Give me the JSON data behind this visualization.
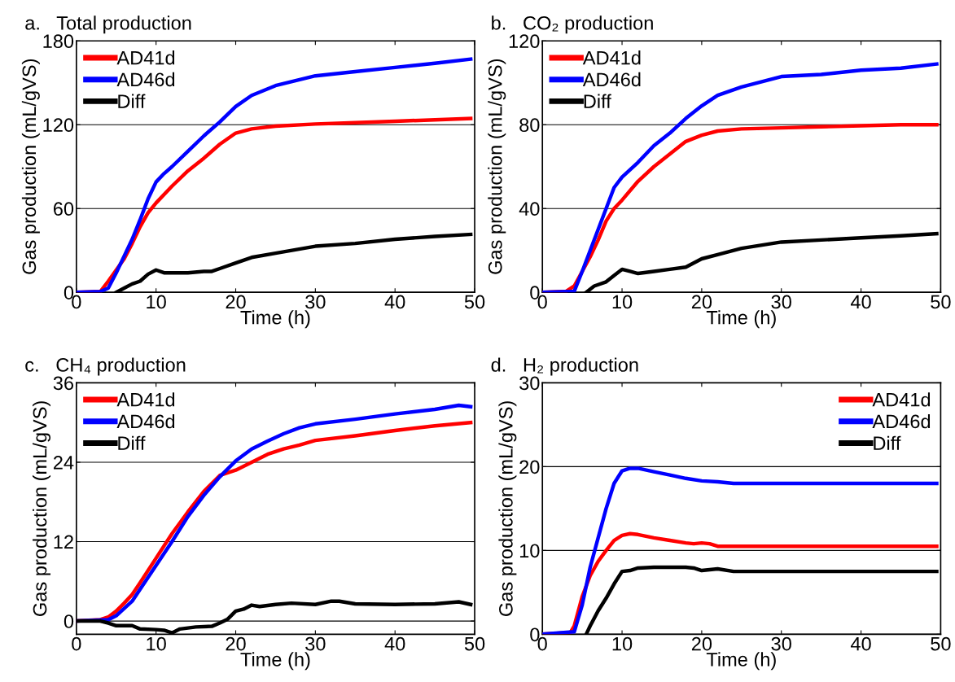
{
  "chart_data": [
    {
      "type": "line",
      "title": "a.   Total production",
      "xlabel": "Time (h)",
      "ylabel": "Gas production (mL/gVS)",
      "xlim": [
        0,
        50
      ],
      "xticks": [
        0,
        10,
        20,
        30,
        40,
        50
      ],
      "ylim": [
        0,
        180
      ],
      "yticks": [
        0,
        60,
        120,
        180
      ],
      "grid": "y",
      "legend": "top left",
      "line_style": "solid",
      "marker": "none",
      "series": [
        {
          "name": "AD41d",
          "color": "#ff0000",
          "x": [
            0,
            3,
            4,
            5,
            6,
            7,
            8,
            9,
            10,
            12,
            14,
            16,
            18,
            20,
            22,
            25,
            30,
            35,
            40,
            45,
            49.5
          ],
          "values": [
            0,
            0.5,
            8,
            16,
            24,
            35,
            47,
            57,
            64,
            76,
            87,
            96,
            106,
            114,
            117,
            119,
            120.5,
            121.5,
            122.5,
            123.5,
            124.5
          ]
        },
        {
          "name": "AD46d",
          "color": "#0000ff",
          "x": [
            0,
            3,
            4,
            5,
            6,
            7,
            8,
            9,
            10,
            11,
            12,
            14,
            16,
            18,
            20,
            22,
            25,
            30,
            35,
            40,
            45,
            49.5
          ],
          "values": [
            0,
            0.5,
            3,
            14,
            26,
            38,
            52,
            67,
            79,
            85,
            90,
            101,
            112,
            122,
            133,
            141,
            148,
            155,
            158,
            161,
            164,
            167
          ]
        },
        {
          "name": "Diff",
          "color": "#000000",
          "x": [
            5,
            6,
            7,
            8,
            9,
            10,
            11,
            12,
            14,
            16,
            17,
            18,
            20,
            22,
            25,
            30,
            35,
            40,
            45,
            49.5
          ],
          "values": [
            0,
            3,
            6,
            8,
            13,
            16,
            14,
            14,
            14,
            15,
            15,
            17,
            21,
            25,
            28,
            33,
            35,
            38,
            40,
            41.5
          ]
        }
      ]
    },
    {
      "type": "line",
      "title": "b.   CO₂ production",
      "xlabel": "Time (h)",
      "ylabel": "Gas production (mL/gVS)",
      "xlim": [
        0,
        50
      ],
      "xticks": [
        0,
        10,
        20,
        30,
        40,
        50
      ],
      "ylim": [
        0,
        120
      ],
      "yticks": [
        0,
        40,
        80,
        120
      ],
      "grid": "y",
      "legend": "top left",
      "line_style": "solid",
      "marker": "none",
      "series": [
        {
          "name": "AD41d",
          "color": "#ff0000",
          "x": [
            0,
            3,
            4,
            5,
            6,
            7,
            8,
            9,
            10,
            12,
            14,
            16,
            18,
            20,
            22,
            25,
            30,
            35,
            40,
            45,
            49.5
          ],
          "values": [
            0,
            0.5,
            3,
            10,
            17,
            25,
            34,
            40,
            44,
            53,
            60,
            66,
            72,
            75,
            77,
            78,
            78.5,
            79,
            79.5,
            80,
            80
          ]
        },
        {
          "name": "AD46d",
          "color": "#0000ff",
          "x": [
            0,
            4,
            5,
            6,
            7,
            8,
            9,
            10,
            12,
            14,
            16,
            18,
            20,
            22,
            25,
            30,
            35,
            40,
            45,
            49.5
          ],
          "values": [
            0,
            0.5,
            10,
            20,
            30,
            40,
            50,
            55,
            62,
            70,
            76,
            83,
            89,
            94,
            98,
            103,
            104,
            106,
            107,
            109
          ]
        },
        {
          "name": "Diff",
          "color": "#000000",
          "x": [
            5.5,
            6.5,
            8,
            9,
            10,
            11,
            12,
            14,
            16,
            18,
            20,
            22,
            25,
            30,
            35,
            40,
            45,
            49.5
          ],
          "values": [
            0,
            3,
            5,
            8,
            11,
            10,
            9,
            10,
            11,
            12,
            16,
            18,
            21,
            24,
            25,
            26,
            27,
            28
          ]
        }
      ]
    },
    {
      "type": "line",
      "title": "c.   CH₄ production",
      "xlabel": "Time (h)",
      "ylabel": "Gas production (mL/gVS)",
      "xlim": [
        0,
        50
      ],
      "xticks": [
        0,
        10,
        20,
        30,
        40,
        50
      ],
      "ylim": [
        -2,
        36
      ],
      "yticks": [
        0,
        12,
        24,
        36
      ],
      "grid": "y",
      "legend": "top left",
      "line_style": "solid",
      "marker": "none",
      "series": [
        {
          "name": "AD41d",
          "color": "#ff0000",
          "x": [
            0,
            3,
            4,
            5,
            6,
            7,
            8,
            10,
            12,
            14,
            16,
            18,
            20,
            22,
            24,
            26,
            28,
            30,
            35,
            40,
            45,
            49.5
          ],
          "values": [
            0,
            0.2,
            0.6,
            1.5,
            2.7,
            4,
            5.8,
            9.5,
            13.2,
            16.5,
            19.6,
            22,
            22.8,
            24,
            25.2,
            26,
            26.6,
            27.3,
            28,
            28.8,
            29.5,
            30
          ]
        },
        {
          "name": "AD46d",
          "color": "#0000ff",
          "x": [
            0,
            4,
            5,
            6,
            7,
            8,
            10,
            12,
            14,
            16,
            18,
            20,
            22,
            24,
            26,
            28,
            30,
            35,
            40,
            45,
            48,
            49.5
          ],
          "values": [
            0,
            0.2,
            0.8,
            1.9,
            3,
            4.8,
            8.4,
            12,
            15.8,
            19,
            21.8,
            24.2,
            26,
            27.2,
            28.3,
            29.2,
            29.8,
            30.5,
            31.3,
            32,
            32.6,
            32.4
          ]
        },
        {
          "name": "Diff",
          "color": "#000000",
          "x": [
            0,
            3,
            4,
            5,
            7,
            8,
            10,
            11,
            12,
            13,
            15,
            17,
            18,
            19,
            20,
            21,
            22,
            23,
            25,
            27,
            30,
            32,
            33,
            35,
            40,
            45,
            48,
            49.5
          ],
          "values": [
            0,
            0,
            -0.3,
            -0.7,
            -0.7,
            -1.2,
            -1.3,
            -1.4,
            -1.8,
            -1.2,
            -0.9,
            -0.8,
            -0.3,
            0.3,
            1.5,
            1.8,
            2.4,
            2.2,
            2.5,
            2.7,
            2.5,
            3,
            3,
            2.6,
            2.5,
            2.6,
            2.9,
            2.5
          ]
        }
      ]
    },
    {
      "type": "line",
      "title": "d.   H₂ production",
      "xlabel": "Time (h)",
      "ylabel": "Gas production (mL/gVS)",
      "xlim": [
        0,
        50
      ],
      "xticks": [
        0,
        10,
        20,
        30,
        40,
        50
      ],
      "ylim": [
        0,
        30
      ],
      "yticks": [
        0,
        10,
        20,
        30
      ],
      "grid": "y",
      "legend": "top right",
      "line_style": "solid",
      "marker": "none",
      "series": [
        {
          "name": "AD41d",
          "color": "#ff0000",
          "x": [
            0,
            3.5,
            4,
            5,
            6,
            7,
            8,
            9,
            10,
            11,
            12,
            14,
            16,
            18,
            19,
            20,
            21,
            22,
            30,
            40,
            49.5
          ],
          "values": [
            0,
            0.2,
            1,
            4.5,
            7,
            8.7,
            10,
            11.2,
            11.8,
            12,
            11.9,
            11.5,
            11.2,
            10.9,
            10.8,
            10.9,
            10.8,
            10.5,
            10.5,
            10.5,
            10.5
          ]
        },
        {
          "name": "AD46d",
          "color": "#0000ff",
          "x": [
            0,
            4,
            5,
            6,
            7,
            8,
            9,
            10,
            11,
            12,
            14,
            16,
            18,
            20,
            22,
            24,
            30,
            40,
            49.5
          ],
          "values": [
            0,
            0.3,
            3.5,
            8,
            11.5,
            15,
            18,
            19.5,
            19.8,
            19.8,
            19.4,
            19,
            18.6,
            18.3,
            18.2,
            18,
            18,
            18,
            18
          ]
        },
        {
          "name": "Diff",
          "color": "#000000",
          "x": [
            5.5,
            6,
            7,
            8,
            9,
            10,
            11,
            12,
            14,
            16,
            18,
            19,
            20,
            21,
            22,
            24,
            30,
            40,
            49.5
          ],
          "values": [
            0,
            1,
            2.8,
            4.3,
            6,
            7.5,
            7.6,
            7.9,
            8,
            8,
            8,
            7.9,
            7.6,
            7.7,
            7.8,
            7.5,
            7.5,
            7.5,
            7.5
          ]
        }
      ]
    }
  ]
}
